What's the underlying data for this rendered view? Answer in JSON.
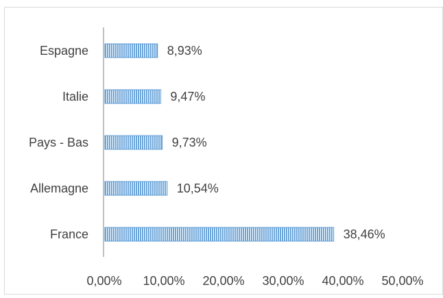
{
  "chart_data": {
    "type": "bar",
    "orientation": "horizontal",
    "categories": [
      "France",
      "Allemagne",
      "Pays - Bas",
      "Italie",
      "Espagne"
    ],
    "values": [
      38.46,
      10.54,
      9.73,
      9.47,
      8.93
    ],
    "data_labels": [
      "38,46%",
      "10,54%",
      "9,73%",
      "9,47%",
      "8,93%"
    ],
    "xlim": [
      0,
      50
    ],
    "x_ticks": [
      0,
      10,
      20,
      30,
      40,
      50
    ],
    "x_tick_labels": [
      "0,00%",
      "10,00%",
      "20,00%",
      "30,00%",
      "40,00%",
      "50,00%"
    ],
    "grid": false,
    "legend": "none",
    "colors": {
      "bar_fill": "#5b9bd5",
      "bar_stripe": "#ffffff",
      "axis": "#bfbfbf",
      "text": "#404040",
      "frame": "#d9d9d9"
    }
  }
}
